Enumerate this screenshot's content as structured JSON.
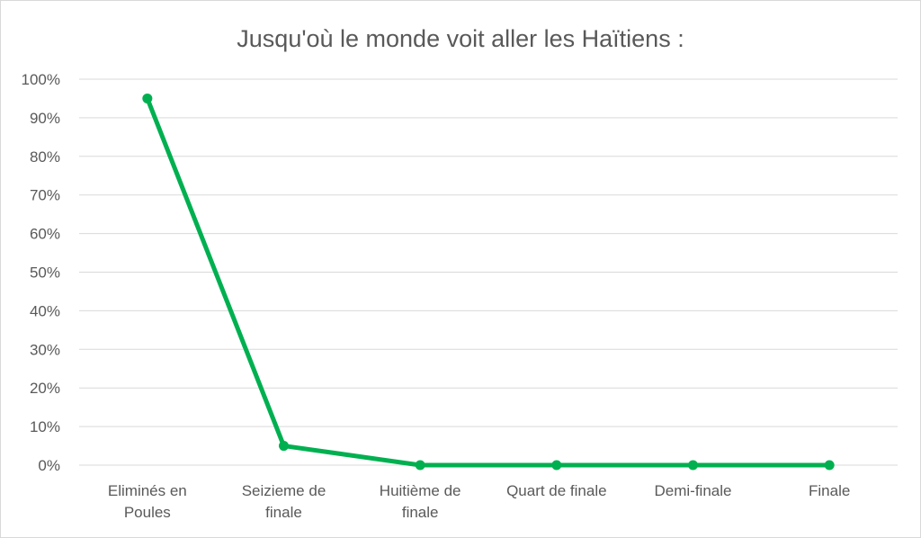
{
  "chart_data": {
    "type": "line",
    "title": "Jusqu'où le monde voit aller les Haïtiens :",
    "xlabel": "",
    "ylabel": "",
    "categories": [
      [
        "Eliminés en",
        "Poules"
      ],
      [
        "Seizieme de",
        "finale"
      ],
      [
        "Huitième de",
        "finale"
      ],
      [
        "Quart de finale"
      ],
      [
        "Demi-finale"
      ],
      [
        "Finale"
      ]
    ],
    "series": [
      {
        "values": [
          0.95,
          0.05,
          0,
          0,
          0,
          0
        ]
      }
    ],
    "ylim": [
      0,
      1
    ],
    "yticks": [
      "0%",
      "10%",
      "20%",
      "30%",
      "40%",
      "50%",
      "60%",
      "70%",
      "80%",
      "90%",
      "100%"
    ],
    "grid": true,
    "legend": "none",
    "colors": {
      "line": "#00b050",
      "grid": "#d9d9d9",
      "text": "#595959"
    }
  }
}
